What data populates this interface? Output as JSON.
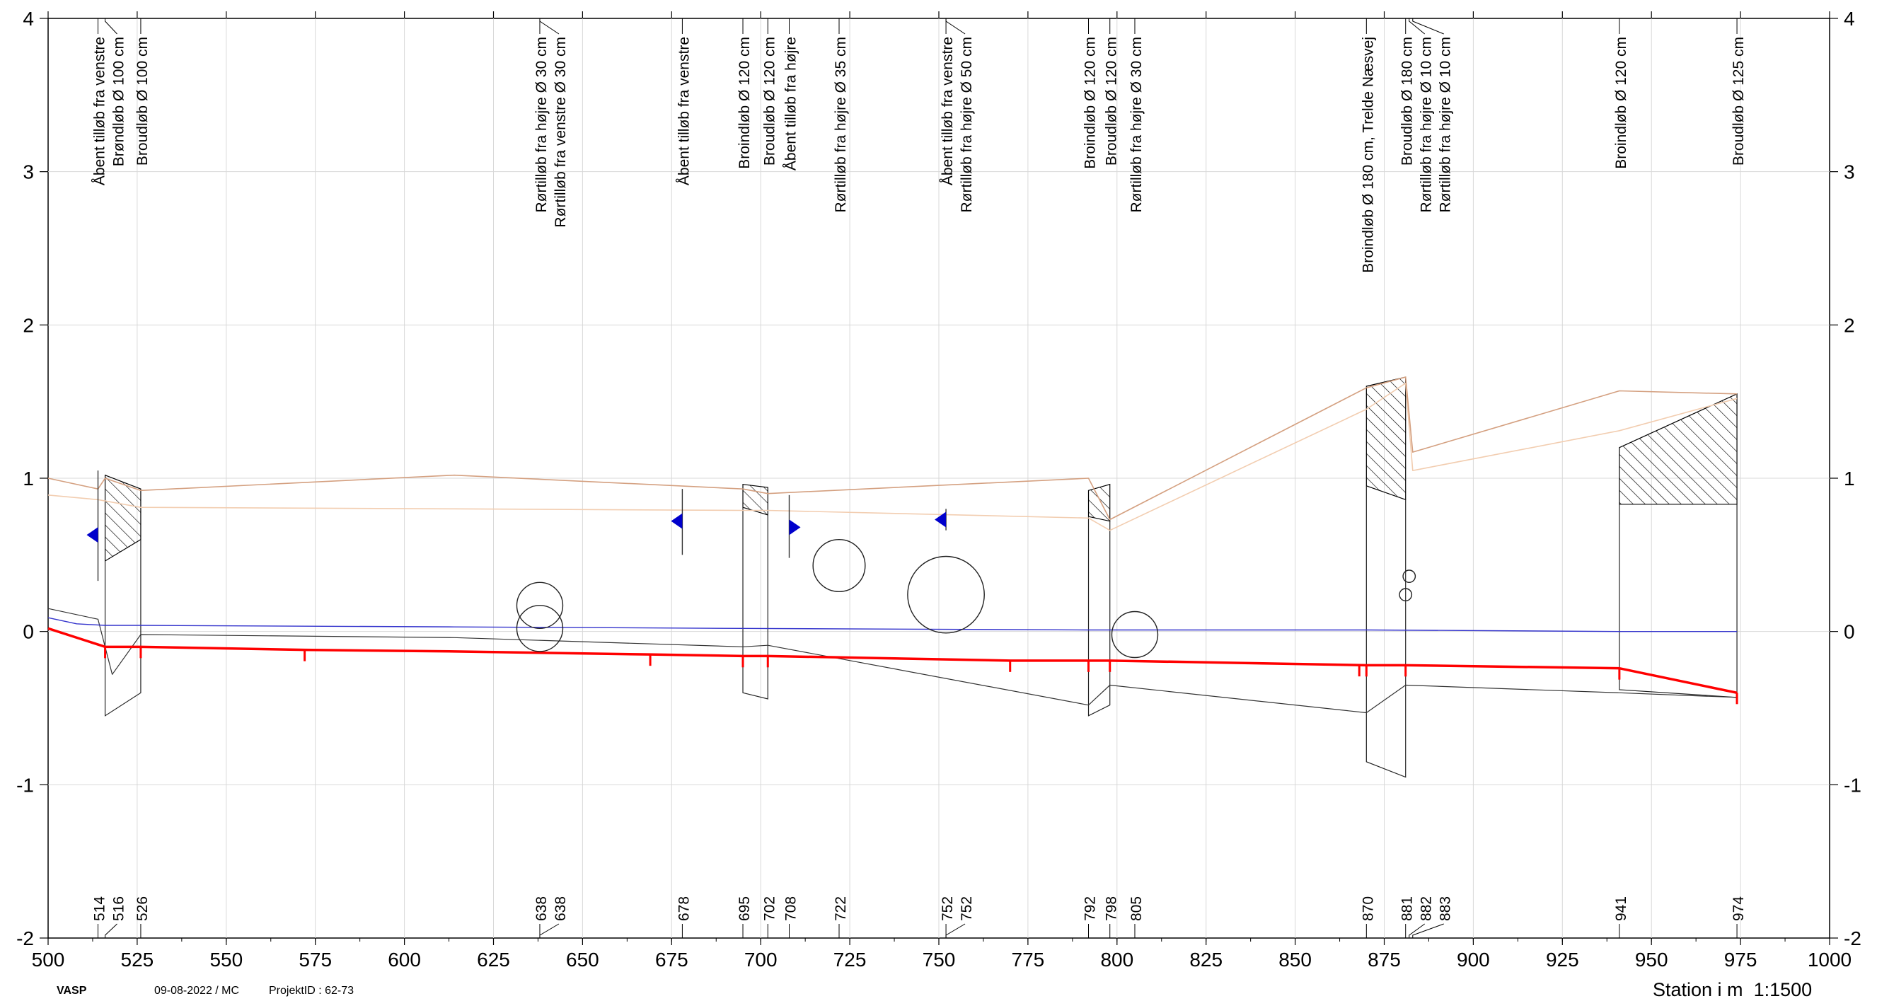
{
  "chart_data": {
    "type": "line",
    "title": "",
    "xlabel": "Station i m",
    "scale_label": "1:1500",
    "xlim": [
      500,
      1000
    ],
    "ylim": [
      -2,
      4
    ],
    "grid": true,
    "x_ticks": [
      "500",
      "525",
      "550",
      "575",
      "600",
      "625",
      "650",
      "675",
      "700",
      "725",
      "750",
      "775",
      "800",
      "825",
      "850",
      "875",
      "900",
      "925",
      "950",
      "975",
      "1000"
    ],
    "y_ticks": [
      "4",
      "3",
      "2",
      "1",
      "0",
      "-1",
      "-2"
    ],
    "colors": {
      "grid": "#d8d8d8",
      "bottom_line": "#ff0000",
      "water_level": "#3333cc",
      "top_bank": "#d4a080",
      "top_bank_light": "#f2cdb0",
      "terrain": "#333333",
      "arrow": "#0000cc",
      "hatch": "#000000"
    },
    "series": [
      {
        "key": "bottom_line",
        "x": [
          500,
          516,
          526,
          572,
          614,
          669,
          695,
          702,
          770,
          792,
          798,
          870,
          881,
          941,
          974
        ],
        "y": [
          0.02,
          -0.1,
          -0.1,
          -0.12,
          -0.13,
          -0.15,
          -0.16,
          -0.16,
          -0.19,
          -0.19,
          -0.19,
          -0.22,
          -0.22,
          -0.24,
          -0.4
        ]
      },
      {
        "key": "water_level",
        "x": [
          500,
          508,
          516,
          526,
          614,
          695,
          792,
          870,
          941,
          974
        ],
        "y": [
          0.09,
          0.05,
          0.04,
          0.04,
          0.03,
          0.02,
          0.01,
          0.01,
          0.0,
          0.0
        ]
      },
      {
        "key": "top_bank",
        "x": [
          500,
          514,
          516,
          526,
          614,
          695,
          702,
          792,
          798,
          870,
          881,
          883,
          941,
          974
        ],
        "y": [
          1.0,
          0.93,
          1.0,
          0.92,
          1.02,
          0.93,
          0.9,
          1.0,
          0.73,
          1.59,
          1.66,
          1.17,
          1.57,
          1.55
        ]
      },
      {
        "key": "top_bank_light",
        "x": [
          500,
          514,
          526,
          614,
          695,
          702,
          792,
          798,
          870,
          881,
          883,
          941,
          974
        ],
        "y": [
          0.89,
          0.86,
          0.81,
          0.8,
          0.79,
          0.79,
          0.74,
          0.66,
          1.45,
          1.62,
          1.05,
          1.31,
          1.52
        ]
      },
      {
        "key": "terrain",
        "x": [
          500,
          514,
          518,
          526,
          614,
          695,
          702,
          792,
          798,
          870,
          881,
          941,
          974
        ],
        "y": [
          0.15,
          0.08,
          -0.28,
          -0.02,
          -0.04,
          -0.1,
          -0.09,
          -0.48,
          -0.35,
          -0.53,
          -0.35,
          -0.4,
          -0.43
        ]
      }
    ],
    "bottom_ticks": [
      516,
      526,
      572,
      669,
      695,
      702,
      770,
      792,
      798,
      868,
      870,
      881,
      941,
      974
    ],
    "structures": [
      {
        "x1": 516,
        "x2": 526,
        "inv1": -0.55,
        "inv2": -0.4,
        "top1": 1.02,
        "top2": 0.93,
        "hb1": 0.46,
        "hb2": 0.6
      },
      {
        "x1": 695,
        "x2": 702,
        "inv1": -0.4,
        "inv2": -0.44,
        "top1": 0.96,
        "top2": 0.94,
        "hb1": 0.81,
        "hb2": 0.76
      },
      {
        "x1": 792,
        "x2": 798,
        "inv1": -0.55,
        "inv2": -0.48,
        "top1": 0.92,
        "top2": 0.96,
        "hb1": 0.75,
        "hb2": 0.72
      },
      {
        "x1": 870,
        "x2": 881,
        "inv1": -0.85,
        "inv2": -0.95,
        "top1": 1.6,
        "top2": 1.66,
        "hb1": 0.95,
        "hb2": 0.86
      },
      {
        "x1": 941,
        "x2": 974,
        "inv1": -0.38,
        "inv2": -0.43,
        "top1": 1.2,
        "top2": 1.55,
        "hb1": 0.83,
        "hb2": 0.83
      }
    ],
    "circles": [
      {
        "x": 638,
        "y": 0.17,
        "r": 0.15
      },
      {
        "x": 638,
        "y": 0.02,
        "r": 0.15
      },
      {
        "x": 722,
        "y": 0.43,
        "r": 0.17
      },
      {
        "x": 752,
        "y": 0.24,
        "r": 0.25
      },
      {
        "x": 805,
        "y": -0.02,
        "r": 0.15
      },
      {
        "x": 882,
        "y": 0.36,
        "r": 0.04
      },
      {
        "x": 881,
        "y": 0.24,
        "r": 0.04
      }
    ],
    "arrows": [
      {
        "x": 514,
        "y": 0.63,
        "dir": "left",
        "y_top": 1.05,
        "y_bottom": 0.33
      },
      {
        "x": 678,
        "y": 0.72,
        "dir": "left",
        "y_top": 0.93,
        "y_bottom": 0.5
      },
      {
        "x": 708,
        "y": 0.68,
        "dir": "right",
        "y_top": 0.89,
        "y_bottom": 0.48
      },
      {
        "x": 752,
        "y": 0.73,
        "dir": "left",
        "y_top": 0.8,
        "y_bottom": 0.66
      }
    ],
    "annotations": [
      {
        "x": 514,
        "station": "514",
        "text": "Åbent tilløb fra venstre"
      },
      {
        "x": 516,
        "station": "516",
        "text": "Brøndløb Ø 100 cm"
      },
      {
        "x": 526,
        "station": "526",
        "text": "Broudløb Ø 100 cm"
      },
      {
        "x": 638,
        "station": "638",
        "text": "Rørtilløb fra højre Ø 30 cm"
      },
      {
        "x": 638,
        "station": "638",
        "text": "Rørtilløb fra venstre Ø 30 cm"
      },
      {
        "x": 678,
        "station": "678",
        "text": "Åbent tilløb fra venstre"
      },
      {
        "x": 695,
        "station": "695",
        "text": "Broindløb Ø 120 cm"
      },
      {
        "x": 702,
        "station": "702",
        "text": "Broudløb Ø 120 cm"
      },
      {
        "x": 708,
        "station": "708",
        "text": "Åbent tilløb fra højre"
      },
      {
        "x": 722,
        "station": "722",
        "text": "Rørtilløb fra højre Ø 35 cm"
      },
      {
        "x": 752,
        "station": "752",
        "text": "Åbent tilløb fra venstre"
      },
      {
        "x": 752,
        "station": "752",
        "text": "Rørtilløb fra højre Ø 50 cm"
      },
      {
        "x": 792,
        "station": "792",
        "text": "Broindløb Ø 120 cm"
      },
      {
        "x": 798,
        "station": "798",
        "text": "Broudløb Ø 120 cm"
      },
      {
        "x": 805,
        "station": "805",
        "text": "Rørtilløb fra højre Ø 30 cm"
      },
      {
        "x": 870,
        "station": "870",
        "text": "Broindløb Ø 180 cm, Trelde Næsvej"
      },
      {
        "x": 881,
        "station": "881",
        "text": "Broudløb Ø 180 cm"
      },
      {
        "x": 882,
        "station": "882",
        "text": "Rørtilløb fra højre Ø 10 cm"
      },
      {
        "x": 883,
        "station": "883",
        "text": "Rørtilløb fra højre Ø 10 cm"
      },
      {
        "x": 941,
        "station": "941",
        "text": "Broindløb Ø 120 cm"
      },
      {
        "x": 974,
        "station": "974",
        "text": "Broudløb Ø 125 cm"
      }
    ]
  },
  "footer": {
    "software": "VASP",
    "date": "09-08-2022 / MC",
    "project": "ProjektID : 62-73"
  }
}
